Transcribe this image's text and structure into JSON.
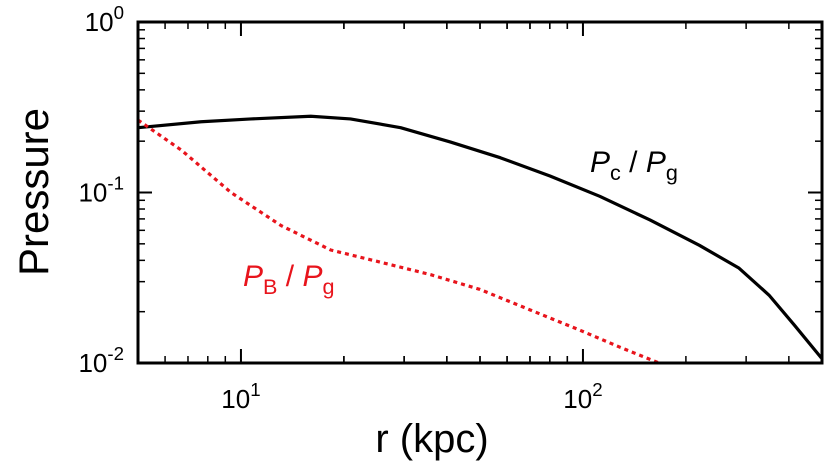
{
  "chart_data": {
    "type": "line",
    "xlabel": "r (kpc)",
    "ylabel": "Pressure",
    "log_x": true,
    "log_y": true,
    "xlim": [
      5,
      500
    ],
    "ylim": [
      0.01,
      1
    ],
    "xticks": [
      {
        "value": 10,
        "label": "10^1"
      },
      {
        "value": 100,
        "label": "10^2"
      }
    ],
    "yticks": [
      {
        "value": 0.01,
        "label": "10^-2"
      },
      {
        "value": 0.1,
        "label": "10^-1"
      },
      {
        "value": 1,
        "label": "10^0"
      }
    ],
    "series": [
      {
        "name": "P_c / P_g",
        "color": "#000000",
        "dash": "solid",
        "x": [
          5,
          7.65,
          10.7,
          16.0,
          20.9,
          29.3,
          40.9,
          57.3,
          80.1,
          112,
          157,
          219,
          286,
          350,
          415,
          498
        ],
        "values": [
          0.24,
          0.26,
          0.27,
          0.28,
          0.27,
          0.24,
          0.198,
          0.16,
          0.125,
          0.095,
          0.069,
          0.049,
          0.036,
          0.025,
          0.0167,
          0.0107
        ]
      },
      {
        "name": "P_B / P_g",
        "color": "#e8141c",
        "dash": "dotted",
        "x": [
          5,
          6.7,
          9.35,
          13.1,
          18.3,
          25.6,
          35.8,
          50.0,
          70.0,
          97.8,
          128,
          167
        ],
        "values": [
          0.266,
          0.177,
          0.1,
          0.064,
          0.046,
          0.039,
          0.033,
          0.027,
          0.0205,
          0.0156,
          0.0124,
          0.01
        ]
      }
    ]
  }
}
